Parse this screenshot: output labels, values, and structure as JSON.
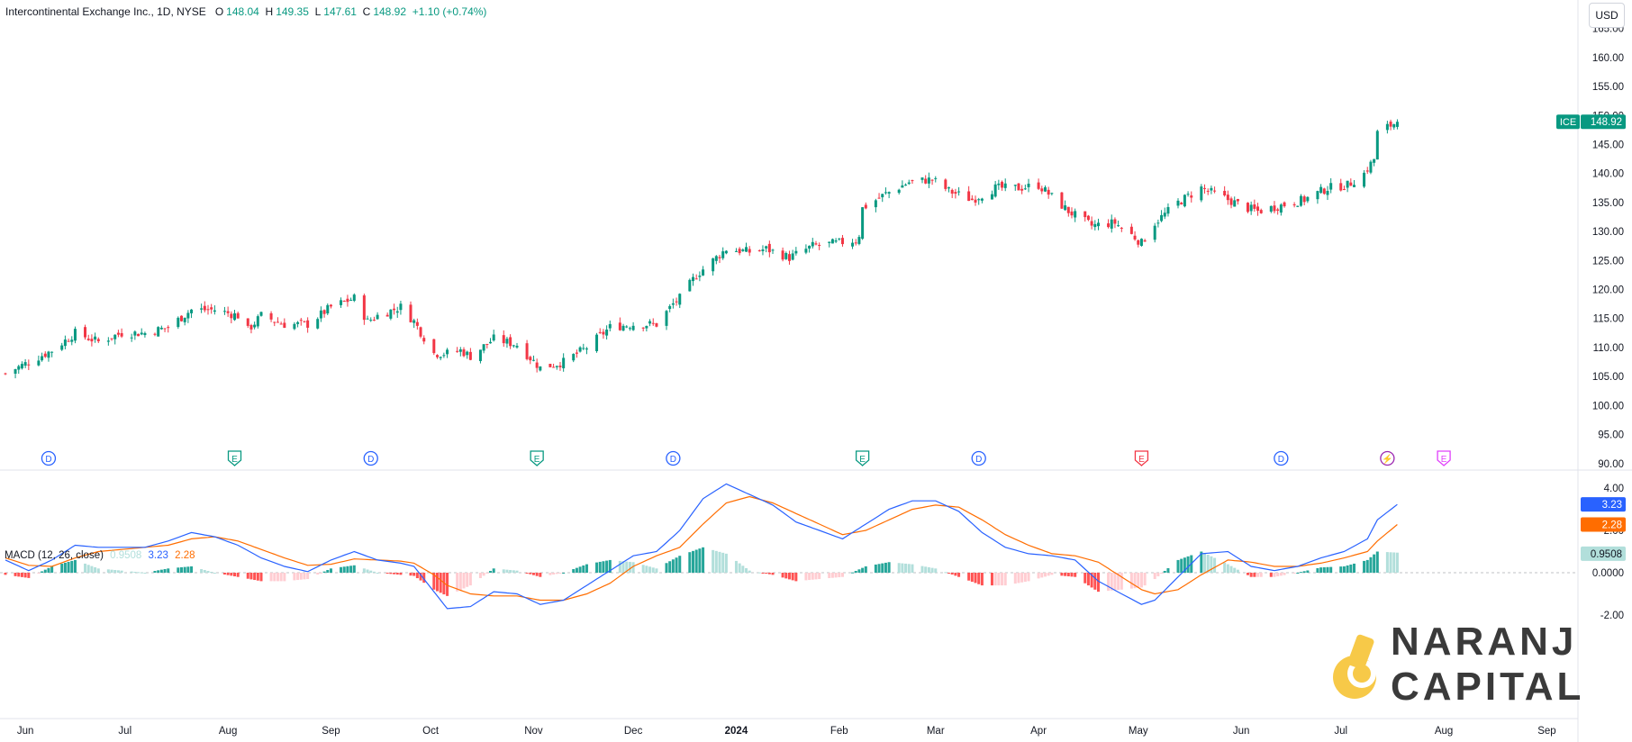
{
  "header": {
    "symbol_name": "Intercontinental Exchange Inc., 1D, NYSE",
    "open_label": "O",
    "open": "148.04",
    "high_label": "H",
    "high": "149.35",
    "low_label": "L",
    "low": "147.61",
    "close_label": "C",
    "close": "148.92",
    "change": "+1.10 (+0.74%)",
    "currency": "USD"
  },
  "price_tag": {
    "ticker": "ICE",
    "value": "148.92"
  },
  "macd_legend": {
    "title": "MACD (12, 26, close)",
    "histogram": "0.9508",
    "macd": "3.23",
    "signal": "2.28"
  },
  "macd_tags": {
    "macd": "3.23",
    "signal": "2.28",
    "histogram": "0.9508"
  },
  "logo": {
    "line1": "NARANJ",
    "line2": "CAPITAL"
  },
  "colors": {
    "up": "#089981",
    "down": "#f23645",
    "macd": "#2962ff",
    "signal": "#ff6d00",
    "hist_up_strong": "#26a69a",
    "hist_up_weak": "#b2dfdb",
    "hist_down_strong": "#ff5252",
    "hist_down_weak": "#ffcdd2"
  },
  "events": [
    {
      "type": "D",
      "label": "D",
      "color": "#2962ff",
      "date": "2023-06-08"
    },
    {
      "type": "E",
      "label": "E",
      "color": "#089981",
      "date": "2023-08-03"
    },
    {
      "type": "D",
      "label": "D",
      "color": "#2962ff",
      "date": "2023-09-13"
    },
    {
      "type": "E",
      "label": "E",
      "color": "#089981",
      "date": "2023-11-02"
    },
    {
      "type": "D",
      "label": "D",
      "color": "#2962ff",
      "date": "2023-12-13"
    },
    {
      "type": "E",
      "label": "E",
      "color": "#089981",
      "date": "2024-02-08"
    },
    {
      "type": "D",
      "label": "D",
      "color": "#2962ff",
      "date": "2024-03-14"
    },
    {
      "type": "E",
      "label": "E",
      "color": "#f23645",
      "date": "2024-05-02"
    },
    {
      "type": "D",
      "label": "D",
      "color": "#2962ff",
      "date": "2024-06-13"
    },
    {
      "type": "split",
      "label": "⚡",
      "color": "#9c27b0",
      "date": "2024-07-15"
    },
    {
      "type": "E",
      "label": "E",
      "color": "#e040fb",
      "date": "2024-08-01"
    }
  ],
  "chart_data": {
    "type": "candlestick",
    "x_axis": {
      "ticks": [
        {
          "label": "Jun",
          "date": "2023-06-01"
        },
        {
          "label": "Jul",
          "date": "2023-07-01"
        },
        {
          "label": "Aug",
          "date": "2023-08-01"
        },
        {
          "label": "Sep",
          "date": "2023-09-01"
        },
        {
          "label": "Oct",
          "date": "2023-10-01"
        },
        {
          "label": "Nov",
          "date": "2023-11-01"
        },
        {
          "label": "Dec",
          "date": "2023-12-01"
        },
        {
          "label": "2024",
          "date": "2024-01-01",
          "bold": true
        },
        {
          "label": "Feb",
          "date": "2024-02-01"
        },
        {
          "label": "Mar",
          "date": "2024-03-01"
        },
        {
          "label": "Apr",
          "date": "2024-04-01"
        },
        {
          "label": "May",
          "date": "2024-05-01"
        },
        {
          "label": "Jun",
          "date": "2024-06-01"
        },
        {
          "label": "Jul",
          "date": "2024-07-01"
        },
        {
          "label": "Aug",
          "date": "2024-08-01"
        },
        {
          "label": "Sep",
          "date": "2024-09-01"
        }
      ],
      "range": [
        "2023-05-26",
        "2024-09-12"
      ]
    },
    "price_axis": {
      "ylim": [
        89.5,
        166.5
      ],
      "ticks": [
        "90.00",
        "95.00",
        "100.00",
        "105.00",
        "110.00",
        "115.00",
        "120.00",
        "125.00",
        "130.00",
        "135.00",
        "140.00",
        "145.00",
        "150.00",
        "155.00",
        "160.00",
        "165.00"
      ]
    },
    "macd_axis": {
      "ylim": [
        -2.3,
        4.6
      ],
      "ticks": [
        {
          "value": 4,
          "label": "4.00"
        },
        {
          "value": 2,
          "label": "2.00"
        },
        {
          "value": 0,
          "label": "0.0000"
        },
        {
          "value": -2,
          "label": "-2.00"
        }
      ]
    },
    "close_anchors": [
      [
        "2023-05-26",
        105.5
      ],
      [
        "2023-06-02",
        107.5
      ],
      [
        "2023-06-09",
        109.5
      ],
      [
        "2023-06-16",
        112.5
      ],
      [
        "2023-06-23",
        111.0
      ],
      [
        "2023-06-30",
        112.5
      ],
      [
        "2023-07-07",
        112.5
      ],
      [
        "2023-07-14",
        113.5
      ],
      [
        "2023-07-21",
        116.5
      ],
      [
        "2023-07-28",
        116.5
      ],
      [
        "2023-08-04",
        115.5
      ],
      [
        "2023-08-07",
        113.0
      ],
      [
        "2023-08-11",
        115.5
      ],
      [
        "2023-08-18",
        114.0
      ],
      [
        "2023-08-25",
        114.0
      ],
      [
        "2023-09-01",
        117.0
      ],
      [
        "2023-09-08",
        118.5
      ],
      [
        "2023-09-12",
        114.5
      ],
      [
        "2023-09-15",
        115.5
      ],
      [
        "2023-09-22",
        117.0
      ],
      [
        "2023-09-26",
        114.5
      ],
      [
        "2023-10-02",
        109.0
      ],
      [
        "2023-10-06",
        109.0
      ],
      [
        "2023-10-10",
        109.5
      ],
      [
        "2023-10-13",
        108.5
      ],
      [
        "2023-10-20",
        111.5
      ],
      [
        "2023-10-27",
        110.5
      ],
      [
        "2023-11-03",
        106.5
      ],
      [
        "2023-11-10",
        107.5
      ],
      [
        "2023-11-17",
        110.0
      ],
      [
        "2023-11-24",
        113.5
      ],
      [
        "2023-12-01",
        114.0
      ],
      [
        "2023-12-08",
        114.0
      ],
      [
        "2023-12-13",
        117.5
      ],
      [
        "2023-12-15",
        118.5
      ],
      [
        "2023-12-20",
        122.5
      ],
      [
        "2023-12-29",
        127.0
      ],
      [
        "2024-01-05",
        126.5
      ],
      [
        "2024-01-10",
        127.0
      ],
      [
        "2024-01-17",
        125.5
      ],
      [
        "2024-01-24",
        127.5
      ],
      [
        "2024-01-31",
        128.0
      ],
      [
        "2024-02-06",
        128.5
      ],
      [
        "2024-02-07",
        129.5
      ],
      [
        "2024-02-08",
        134.0
      ],
      [
        "2024-02-15",
        136.5
      ],
      [
        "2024-02-22",
        138.5
      ],
      [
        "2024-02-29",
        139.0
      ],
      [
        "2024-03-05",
        137.0
      ],
      [
        "2024-03-12",
        135.5
      ],
      [
        "2024-03-19",
        137.5
      ],
      [
        "2024-03-26",
        137.5
      ],
      [
        "2024-04-01",
        138.0
      ],
      [
        "2024-04-05",
        136.0
      ],
      [
        "2024-04-10",
        133.5
      ],
      [
        "2024-04-17",
        131.0
      ],
      [
        "2024-04-24",
        131.5
      ],
      [
        "2024-04-30",
        129.0
      ],
      [
        "2024-05-02",
        128.0
      ],
      [
        "2024-05-06",
        131.5
      ],
      [
        "2024-05-13",
        135.0
      ],
      [
        "2024-05-20",
        137.5
      ],
      [
        "2024-05-28",
        135.5
      ],
      [
        "2024-06-03",
        134.0
      ],
      [
        "2024-06-06",
        133.5
      ],
      [
        "2024-06-13",
        134.5
      ],
      [
        "2024-06-20",
        135.5
      ],
      [
        "2024-06-27",
        137.5
      ],
      [
        "2024-07-03",
        138.0
      ],
      [
        "2024-07-08",
        140.0
      ],
      [
        "2024-07-11",
        142.5
      ],
      [
        "2024-07-12",
        147.0
      ],
      [
        "2024-07-15",
        148.0
      ],
      [
        "2024-07-18",
        148.92
      ]
    ],
    "last_bar": {
      "open": 148.04,
      "high": 149.35,
      "low": 147.61,
      "close": 148.92
    },
    "macd_anchors": [
      [
        "2023-05-26",
        0.6,
        0.7
      ],
      [
        "2023-06-02",
        0.1,
        0.35
      ],
      [
        "2023-06-09",
        0.6,
        0.3
      ],
      [
        "2023-06-16",
        1.3,
        0.7
      ],
      [
        "2023-06-23",
        1.2,
        1.0
      ],
      [
        "2023-06-30",
        1.2,
        1.1
      ],
      [
        "2023-07-07",
        1.2,
        1.2
      ],
      [
        "2023-07-14",
        1.5,
        1.3
      ],
      [
        "2023-07-21",
        1.9,
        1.6
      ],
      [
        "2023-07-28",
        1.7,
        1.7
      ],
      [
        "2023-08-04",
        1.3,
        1.5
      ],
      [
        "2023-08-11",
        0.7,
        1.1
      ],
      [
        "2023-08-18",
        0.3,
        0.7
      ],
      [
        "2023-08-25",
        0.05,
        0.35
      ],
      [
        "2023-09-01",
        0.6,
        0.4
      ],
      [
        "2023-09-08",
        1.0,
        0.65
      ],
      [
        "2023-09-15",
        0.6,
        0.6
      ],
      [
        "2023-09-22",
        0.45,
        0.55
      ],
      [
        "2023-09-26",
        0.3,
        0.45
      ],
      [
        "2023-10-02",
        -0.9,
        -0.1
      ],
      [
        "2023-10-06",
        -1.7,
        -0.6
      ],
      [
        "2023-10-13",
        -1.6,
        -1.0
      ],
      [
        "2023-10-20",
        -0.9,
        -1.1
      ],
      [
        "2023-10-27",
        -1.0,
        -1.1
      ],
      [
        "2023-11-03",
        -1.5,
        -1.3
      ],
      [
        "2023-11-10",
        -1.3,
        -1.3
      ],
      [
        "2023-11-17",
        -0.6,
        -1.0
      ],
      [
        "2023-11-24",
        0.1,
        -0.5
      ],
      [
        "2023-12-01",
        0.8,
        0.3
      ],
      [
        "2023-12-08",
        1.0,
        0.8
      ],
      [
        "2023-12-15",
        2.0,
        1.2
      ],
      [
        "2023-12-22",
        3.5,
        2.3
      ],
      [
        "2023-12-29",
        4.2,
        3.3
      ],
      [
        "2024-01-05",
        3.7,
        3.6
      ],
      [
        "2024-01-12",
        3.2,
        3.3
      ],
      [
        "2024-01-19",
        2.4,
        2.8
      ],
      [
        "2024-01-26",
        2.0,
        2.3
      ],
      [
        "2024-02-02",
        1.6,
        1.8
      ],
      [
        "2024-02-09",
        2.3,
        2.0
      ],
      [
        "2024-02-16",
        3.0,
        2.5
      ],
      [
        "2024-02-23",
        3.4,
        3.0
      ],
      [
        "2024-03-01",
        3.4,
        3.2
      ],
      [
        "2024-03-08",
        2.9,
        3.1
      ],
      [
        "2024-03-15",
        1.9,
        2.5
      ],
      [
        "2024-03-22",
        1.2,
        1.8
      ],
      [
        "2024-03-29",
        0.9,
        1.3
      ],
      [
        "2024-04-05",
        0.8,
        0.9
      ],
      [
        "2024-04-12",
        0.6,
        0.8
      ],
      [
        "2024-04-19",
        -0.4,
        0.5
      ],
      [
        "2024-04-26",
        -1.0,
        -0.2
      ],
      [
        "2024-05-02",
        -1.5,
        -0.8
      ],
      [
        "2024-05-06",
        -1.3,
        -1.0
      ],
      [
        "2024-05-13",
        -0.2,
        -0.8
      ],
      [
        "2024-05-20",
        0.9,
        -0.1
      ],
      [
        "2024-05-28",
        1.0,
        0.6
      ],
      [
        "2024-06-04",
        0.3,
        0.5
      ],
      [
        "2024-06-11",
        0.1,
        0.3
      ],
      [
        "2024-06-18",
        0.3,
        0.3
      ],
      [
        "2024-06-25",
        0.7,
        0.45
      ],
      [
        "2024-07-02",
        1.0,
        0.7
      ],
      [
        "2024-07-09",
        1.6,
        1.0
      ],
      [
        "2024-07-12",
        2.5,
        1.5
      ],
      [
        "2024-07-18",
        3.23,
        2.28
      ]
    ]
  }
}
